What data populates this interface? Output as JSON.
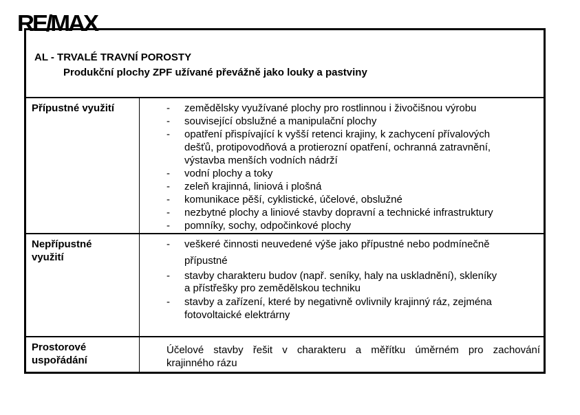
{
  "logo": "RE/MAX",
  "header": {
    "title": "AL - TRVALÉ TRAVNÍ POROSTY",
    "subtitle": "Produkční plochy ZPF užívané převážně jako louky a pastviny"
  },
  "rows": [
    {
      "label": [
        "Přípustné využití"
      ],
      "items": [
        [
          "zemědělsky využívané plochy pro rostlinnou i živočišnou výrobu"
        ],
        [
          "související obslužné a manipulační plochy"
        ],
        [
          "opatření přispívající k vyšší retenci krajiny, k zachycení přívalových",
          "dešťů, protipovodňová a protierozní opatření, ochranná zatravnění,",
          "výstavba menších vodních nádrží"
        ],
        [
          "vodní plochy a toky"
        ],
        [
          "zeleň krajinná, liniová i plošná"
        ],
        [
          "komunikace pěší, cyklistické, účelové, obslužné"
        ],
        [
          "nezbytné plochy a liniové stavby dopravní a technické infrastruktury"
        ],
        [
          "pomníky, sochy, odpočinkové plochy"
        ]
      ]
    },
    {
      "label": [
        "Nepřípustné",
        "využití"
      ],
      "items": [
        [
          "veškeré činnosti neuvedené výše jako přípustné nebo podmínečně",
          "přípustné"
        ],
        [
          "stavby charakteru budov (např. seníky, haly na uskladnění), skleníky",
          "a přístřešky pro zemědělskou techniku"
        ],
        [
          "stavby a zařízení, které by negativně ovlivnily krajinný ráz, zejména",
          "fotovoltaické elektrárny"
        ]
      ]
    },
    {
      "label": [
        "Prostorové",
        "uspořádání"
      ],
      "text": [
        "Účelové stavby řešit v charakteru a měřítku úměrném pro zachování",
        "krajinného rázu"
      ]
    }
  ],
  "bullet": "-"
}
